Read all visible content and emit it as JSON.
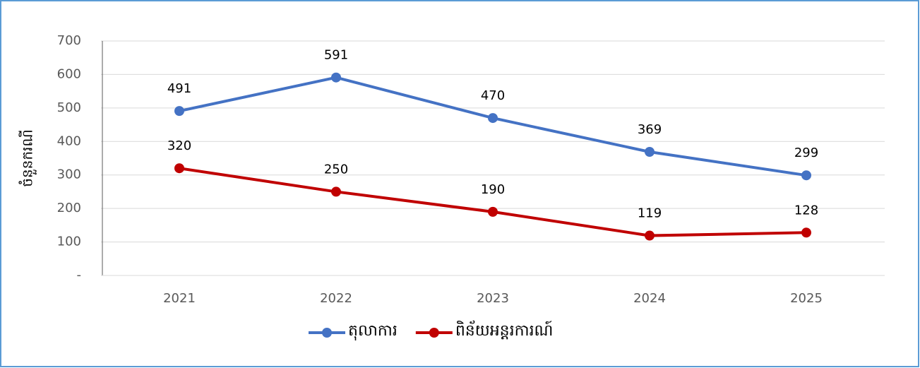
{
  "chart_data": {
    "type": "line",
    "y_label": "ចំនួនករណី",
    "categories": [
      "2021",
      "2022",
      "2023",
      "2024",
      "2025"
    ],
    "series": [
      {
        "name": "តុលាការ",
        "color": "#4472c4",
        "values": [
          491,
          591,
          470,
          369,
          299
        ]
      },
      {
        "name": "ពិន័យអន្តរការណ៍",
        "color": "#c00000",
        "values": [
          320,
          250,
          190,
          119,
          128
        ]
      }
    ],
    "ylim": [
      0,
      700
    ],
    "yticks": [
      {
        "value": 0,
        "label": "-"
      },
      100,
      200,
      300,
      400,
      500,
      600,
      700
    ],
    "grid": true,
    "legend": "bottom"
  }
}
